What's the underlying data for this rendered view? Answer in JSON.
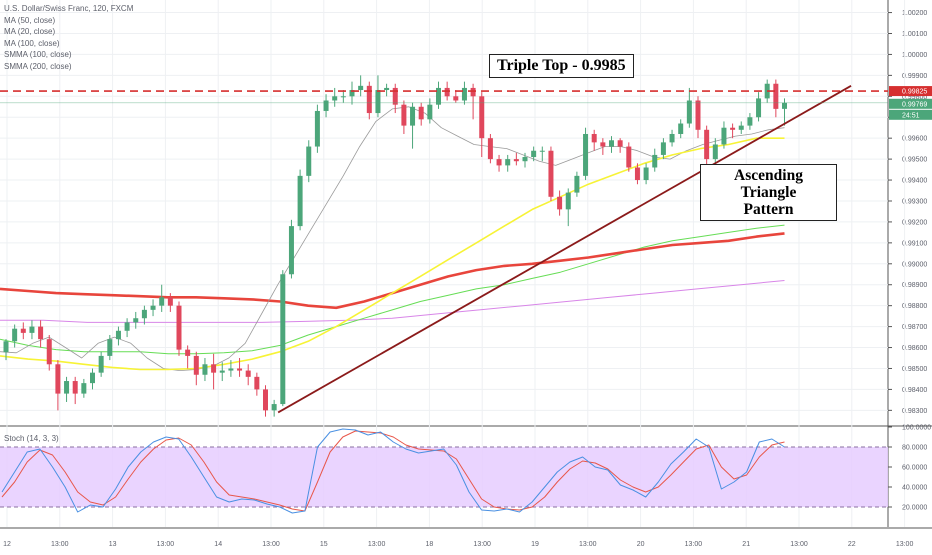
{
  "legend": {
    "symbol_line": "U.S. Dollar/Swiss Franc, 120, FXCM",
    "indicators": [
      "MA (50, close)",
      "MA (20, close)",
      "MA (100, close)",
      "SMMA (100, close)",
      "SMMA (200, close)"
    ]
  },
  "annotations": {
    "triple_top": "Triple Top  -  0.9985",
    "triangle_line1": "Ascending Triangle",
    "triangle_line2": "Pattern"
  },
  "stoch_legend": "Stoch (14, 3, 3)",
  "price_tags": {
    "resistance": "0.99825",
    "last": "0.99769",
    "countdown": "24:51"
  },
  "colors": {
    "bull": "#4ca67a",
    "bear": "#e0475c",
    "ma_yellow": "#f7f336",
    "ma_gray": "#9a9a9a",
    "ma_green": "#66dd55",
    "smma_red": "#e8453c",
    "smma_pink": "#d886e8",
    "stoch_k": "#4a90e2",
    "stoch_d": "#e8574a",
    "stoch_band": "#e6ccff",
    "trendline": "#8b1a1a",
    "resistance": "#d62f2f"
  },
  "chart_data": [
    {
      "type": "candlestick",
      "title": "U.S. Dollar/Swiss Franc, 120, FXCM",
      "x_tick_labels": [
        "12",
        "13:00",
        "13",
        "13:00",
        "14",
        "13:00",
        "15",
        "13:00",
        "18",
        "13:00",
        "19",
        "13:00",
        "20",
        "13:00",
        "21",
        "13:00",
        "22",
        "13:00"
      ],
      "y_tick_labels": [
        "1.00200",
        "1.00100",
        "1.00000",
        "0.99900",
        "0.99800",
        "0.99700",
        "0.99600",
        "0.99500",
        "0.99400",
        "0.99300",
        "0.99200",
        "0.99100",
        "0.99000",
        "0.98900",
        "0.98800",
        "0.98700",
        "0.98600",
        "0.98500",
        "0.98400",
        "0.98300"
      ],
      "ylim": [
        0.9823,
        1.0026
      ],
      "candles": [
        [
          0.98578,
          0.9863,
          0.9854,
          0.9864
        ],
        [
          0.9863,
          0.9869,
          0.986,
          0.9871
        ],
        [
          0.9869,
          0.9867,
          0.9864,
          0.9872
        ],
        [
          0.9867,
          0.987,
          0.9864,
          0.9873
        ],
        [
          0.987,
          0.9864,
          0.986,
          0.9873
        ],
        [
          0.9864,
          0.9852,
          0.9849,
          0.9866
        ],
        [
          0.9852,
          0.9838,
          0.983,
          0.9854
        ],
        [
          0.9838,
          0.9844,
          0.9834,
          0.9846
        ],
        [
          0.9844,
          0.9838,
          0.9833,
          0.9846
        ],
        [
          0.9838,
          0.9843,
          0.9836,
          0.9845
        ],
        [
          0.9843,
          0.9848,
          0.984,
          0.985
        ],
        [
          0.9848,
          0.9856,
          0.9846,
          0.9858
        ],
        [
          0.9856,
          0.9864,
          0.9854,
          0.9866
        ],
        [
          0.9864,
          0.9868,
          0.9861,
          0.987
        ],
        [
          0.9868,
          0.9872,
          0.9865,
          0.9874
        ],
        [
          0.9872,
          0.9874,
          0.9869,
          0.9877
        ],
        [
          0.9874,
          0.9878,
          0.9871,
          0.988
        ],
        [
          0.9878,
          0.988,
          0.9875,
          0.9883
        ],
        [
          0.988,
          0.9884,
          0.9877,
          0.989
        ],
        [
          0.9884,
          0.988,
          0.9877,
          0.9886
        ],
        [
          0.988,
          0.9859,
          0.9856,
          0.9882
        ],
        [
          0.9859,
          0.9856,
          0.985,
          0.9861
        ],
        [
          0.9856,
          0.9847,
          0.9842,
          0.9858
        ],
        [
          0.9847,
          0.9852,
          0.9844,
          0.9855
        ],
        [
          0.9852,
          0.9848,
          0.984,
          0.9857
        ],
        [
          0.9848,
          0.9849,
          0.9844,
          0.9853
        ],
        [
          0.9849,
          0.985,
          0.9846,
          0.9854
        ],
        [
          0.985,
          0.9849,
          0.9846,
          0.9855
        ],
        [
          0.9849,
          0.9846,
          0.9842,
          0.9852
        ],
        [
          0.9846,
          0.984,
          0.9837,
          0.9848
        ],
        [
          0.984,
          0.983,
          0.9827,
          0.9842
        ],
        [
          0.983,
          0.9833,
          0.9827,
          0.9835
        ],
        [
          0.9833,
          0.9895,
          0.9832,
          0.9897
        ],
        [
          0.9895,
          0.9918,
          0.9893,
          0.9921
        ],
        [
          0.9918,
          0.9942,
          0.9916,
          0.9945
        ],
        [
          0.9942,
          0.9956,
          0.9939,
          0.9959
        ],
        [
          0.9956,
          0.9973,
          0.9953,
          0.9976
        ],
        [
          0.9973,
          0.9978,
          0.997,
          0.9981
        ],
        [
          0.9978,
          0.998,
          0.9975,
          0.9984
        ],
        [
          0.998,
          0.998,
          0.9977,
          0.9983
        ],
        [
          0.998,
          0.9983,
          0.9976,
          0.9987
        ],
        [
          0.9983,
          0.9985,
          0.998,
          0.999
        ],
        [
          0.9985,
          0.9972,
          0.9969,
          0.9987
        ],
        [
          0.9972,
          0.9983,
          0.997,
          0.999
        ],
        [
          0.9983,
          0.9984,
          0.998,
          0.9986
        ],
        [
          0.9984,
          0.9976,
          0.9972,
          0.9986
        ],
        [
          0.9976,
          0.9966,
          0.9962,
          0.9978
        ],
        [
          0.9966,
          0.9975,
          0.9955,
          0.9977
        ],
        [
          0.9975,
          0.9969,
          0.9966,
          0.9977
        ],
        [
          0.9969,
          0.9976,
          0.9967,
          0.9979
        ],
        [
          0.9976,
          0.9984,
          0.9974,
          0.9987
        ],
        [
          0.9984,
          0.998,
          0.9978,
          0.9987
        ],
        [
          0.998,
          0.9978,
          0.9977,
          0.9983
        ],
        [
          0.9978,
          0.9984,
          0.9976,
          0.9987
        ],
        [
          0.9984,
          0.998,
          0.9969,
          0.9986
        ],
        [
          0.998,
          0.996,
          0.9951,
          0.9982
        ],
        [
          0.996,
          0.995,
          0.9948,
          0.9962
        ],
        [
          0.995,
          0.9947,
          0.9944,
          0.9952
        ],
        [
          0.9947,
          0.995,
          0.9944,
          0.9952
        ],
        [
          0.995,
          0.9949,
          0.9947,
          0.9953
        ],
        [
          0.9949,
          0.9951,
          0.9946,
          0.9953
        ],
        [
          0.9951,
          0.9954,
          0.9949,
          0.9956
        ],
        [
          0.9954,
          0.9954,
          0.9949,
          0.9956
        ],
        [
          0.9954,
          0.9932,
          0.993,
          0.9956
        ],
        [
          0.9932,
          0.9926,
          0.9923,
          0.9935
        ],
        [
          0.9926,
          0.9934,
          0.9918,
          0.9936
        ],
        [
          0.9934,
          0.9942,
          0.9932,
          0.9944
        ],
        [
          0.9942,
          0.9962,
          0.994,
          0.9965
        ],
        [
          0.9962,
          0.9958,
          0.9954,
          0.9964
        ],
        [
          0.9958,
          0.9956,
          0.9952,
          0.996
        ],
        [
          0.9956,
          0.9959,
          0.9953,
          0.9961
        ],
        [
          0.9959,
          0.9956,
          0.9953,
          0.996
        ],
        [
          0.9956,
          0.9946,
          0.9944,
          0.9958
        ],
        [
          0.9946,
          0.994,
          0.9938,
          0.9948
        ],
        [
          0.994,
          0.9946,
          0.9938,
          0.9948
        ],
        [
          0.9946,
          0.9952,
          0.9944,
          0.9955
        ],
        [
          0.9952,
          0.9958,
          0.995,
          0.996
        ],
        [
          0.9958,
          0.9962,
          0.9956,
          0.9964
        ],
        [
          0.9962,
          0.9967,
          0.996,
          0.9969
        ],
        [
          0.9967,
          0.9978,
          0.9965,
          0.9984
        ],
        [
          0.9978,
          0.9964,
          0.996,
          0.998
        ],
        [
          0.9964,
          0.995,
          0.9945,
          0.9966
        ],
        [
          0.995,
          0.9957,
          0.9947,
          0.996
        ],
        [
          0.9957,
          0.9965,
          0.9955,
          0.9968
        ],
        [
          0.9965,
          0.9964,
          0.996,
          0.9967
        ],
        [
          0.9964,
          0.9966,
          0.9962,
          0.9968
        ],
        [
          0.9966,
          0.997,
          0.9964,
          0.9972
        ],
        [
          0.997,
          0.9979,
          0.9968,
          0.9982
        ],
        [
          0.9979,
          0.9986,
          0.9977,
          0.9988
        ],
        [
          0.9986,
          0.9974,
          0.997,
          0.9988
        ],
        [
          0.9974,
          0.99769,
          0.9966,
          0.9979
        ]
      ],
      "ma_yellow": [
        0.9856,
        0.98545,
        0.98535,
        0.9852,
        0.98505,
        0.98495,
        0.98495,
        0.985,
        0.9852,
        0.98545,
        0.9858,
        0.9863,
        0.987,
        0.9878,
        0.9886,
        0.9894,
        0.9902,
        0.991,
        0.9918,
        0.9926,
        0.9932,
        0.9938,
        0.9943,
        0.9948,
        0.9952,
        0.9955,
        0.9957,
        0.996,
        0.996
      ],
      "ma_gray": [
        0.9858,
        0.98575,
        0.9862,
        0.9865,
        0.986,
        0.9855,
        0.9862,
        0.9865,
        0.9862,
        0.9855,
        0.985,
        0.9849,
        0.98495,
        0.9851,
        0.9855,
        0.9862,
        0.9876,
        0.989,
        0.9903,
        0.9916,
        0.9929,
        0.9942,
        0.9956,
        0.9968,
        0.9974,
        0.9975,
        0.9972,
        0.9965,
        0.9961,
        0.9957,
        0.9956,
        0.9955,
        0.9952,
        0.9949,
        0.9947,
        0.995,
        0.9953,
        0.9956,
        0.9956,
        0.9954,
        0.9951,
        0.995,
        0.9954,
        0.9957,
        0.9959,
        0.9961,
        0.9962,
        0.9964,
        0.9965
      ],
      "ma_green": [
        0.9864,
        0.9861,
        0.9859,
        0.9858,
        0.9858,
        0.9858,
        0.9857,
        0.9857,
        0.98575,
        0.98585,
        0.9861,
        0.9866,
        0.987,
        0.9874,
        0.9878,
        0.9882,
        0.9885,
        0.9888,
        0.989,
        0.9893,
        0.9896,
        0.99,
        0.9904,
        0.9908,
        0.9911,
        0.9913,
        0.9915,
        0.9917,
        0.99185
      ],
      "smma_red": [
        0.9888,
        0.9887,
        0.9886,
        0.98855,
        0.9885,
        0.98845,
        0.9884,
        0.9884,
        0.98835,
        0.9883,
        0.9882,
        0.988,
        0.9879,
        0.9882,
        0.9886,
        0.989,
        0.9894,
        0.9897,
        0.9899,
        0.99,
        0.99015,
        0.9903,
        0.9905,
        0.9907,
        0.9909,
        0.991,
        0.9911,
        0.9913,
        0.99145
      ],
      "smma_pink": [
        0.9873,
        0.9873,
        0.9872,
        0.9872,
        0.9872,
        0.9872,
        0.9872,
        0.98725,
        0.9873,
        0.9874,
        0.9876,
        0.9878,
        0.988,
        0.9882,
        0.9884,
        0.9886,
        0.9888,
        0.989,
        0.9892
      ],
      "trendline": {
        "start": [
          31,
          0.9829
        ],
        "end": [
          97,
          0.9985
        ]
      },
      "resistance": 0.99825
    },
    {
      "type": "line",
      "title": "Stoch (14, 3, 3)",
      "y_tick_labels": [
        "100.0000",
        "80.0000",
        "60.0000",
        "40.0000",
        "20.0000"
      ],
      "ylim": [
        0,
        100
      ],
      "band": [
        20,
        80
      ],
      "k": [
        35,
        55,
        75,
        78,
        60,
        40,
        15,
        22,
        20,
        38,
        60,
        75,
        85,
        90,
        88,
        70,
        50,
        30,
        25,
        28,
        27,
        23,
        20,
        14,
        16,
        80,
        95,
        98,
        97,
        92,
        95,
        85,
        78,
        74,
        76,
        78,
        62,
        35,
        17,
        16,
        18,
        15,
        25,
        40,
        55,
        65,
        70,
        60,
        57,
        42,
        37,
        30,
        45,
        63,
        75,
        88,
        80,
        38,
        45,
        55,
        85,
        88,
        80
      ],
      "d": [
        30,
        45,
        65,
        77,
        72,
        55,
        35,
        25,
        22,
        30,
        48,
        65,
        78,
        87,
        89,
        82,
        65,
        45,
        32,
        30,
        28,
        25,
        22,
        18,
        16,
        45,
        75,
        90,
        96,
        95,
        94,
        90,
        82,
        78,
        77,
        76,
        68,
        48,
        28,
        20,
        18,
        17,
        20,
        30,
        45,
        58,
        66,
        64,
        58,
        47,
        40,
        35,
        40,
        52,
        65,
        78,
        82,
        60,
        48,
        52,
        70,
        82,
        85
      ]
    }
  ]
}
